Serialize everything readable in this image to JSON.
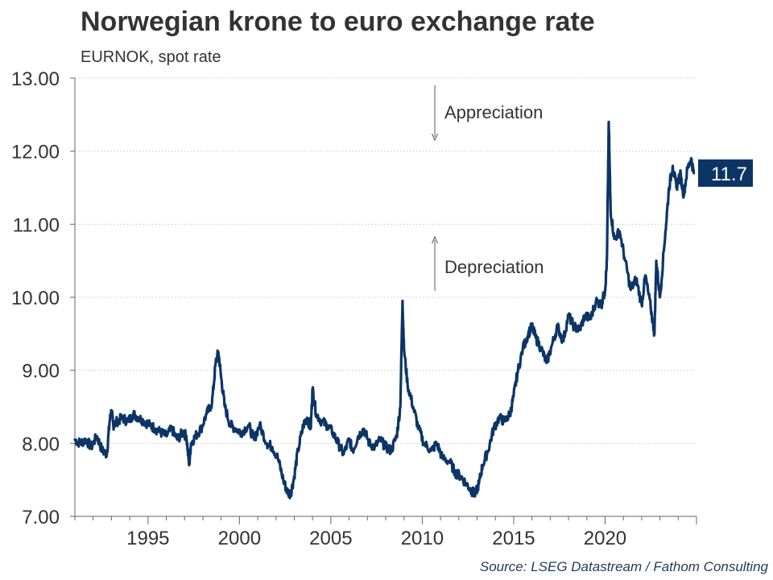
{
  "chart_data": {
    "type": "line",
    "title": "Norwegian krone to euro exchange rate",
    "subtitle": "EURNOK, spot rate",
    "source": "Source: LSEG Datastream / Fathom Consulting",
    "ylim": [
      7.0,
      13.0
    ],
    "yticks": [
      "7.00",
      "8.00",
      "9.00",
      "10.00",
      "11.00",
      "12.00",
      "13.00"
    ],
    "xlim": [
      1991.0,
      2025.0
    ],
    "xticks": [
      "1995",
      "2000",
      "2005",
      "2010",
      "2015",
      "2020"
    ],
    "grid": true,
    "line_color": "#0c3566",
    "last_value_label": "11.7",
    "annotations": [
      {
        "text": "Appreciation",
        "arrow": "down"
      },
      {
        "text": "Depreciation",
        "arrow": "up"
      }
    ],
    "series": [
      {
        "x": [
          1991.0,
          1991.3,
          1991.6,
          1991.9,
          1992.2,
          1992.5,
          1992.75,
          1992.9,
          1993.0,
          1993.1,
          1993.3,
          1993.6,
          1993.9,
          1994.2,
          1994.5,
          1994.8,
          1995.1,
          1995.4,
          1995.7,
          1996.0,
          1996.3,
          1996.6,
          1996.9,
          1997.1,
          1997.25,
          1997.35,
          1997.6,
          1997.9,
          1998.2,
          1998.5,
          1998.7,
          1998.85,
          1999.0,
          1999.2,
          1999.5,
          1999.8,
          2000.1,
          2000.5,
          2000.8,
          2001.1,
          2001.5,
          2001.8,
          2002.1,
          2002.4,
          2002.6,
          2002.8,
          2003.0,
          2003.2,
          2003.5,
          2003.7,
          2003.9,
          2004.0,
          2004.2,
          2004.5,
          2004.8,
          2005.1,
          2005.4,
          2005.7,
          2006.0,
          2006.2,
          2006.5,
          2006.8,
          2007.1,
          2007.4,
          2007.7,
          2008.0,
          2008.3,
          2008.6,
          2008.8,
          2008.92,
          2009.0,
          2009.2,
          2009.5,
          2009.8,
          2010.1,
          2010.5,
          2010.8,
          2011.1,
          2011.5,
          2011.8,
          2012.1,
          2012.4,
          2012.7,
          2012.9,
          2013.1,
          2013.3,
          2013.6,
          2013.9,
          2014.2,
          2014.5,
          2014.8,
          2015.0,
          2015.2,
          2015.5,
          2015.8,
          2016.0,
          2016.2,
          2016.5,
          2016.8,
          2017.1,
          2017.4,
          2017.7,
          2018.0,
          2018.3,
          2018.6,
          2018.9,
          2019.2,
          2019.5,
          2019.8,
          2020.0,
          2020.1,
          2020.2,
          2020.3,
          2020.5,
          2020.8,
          2021.1,
          2021.4,
          2021.7,
          2022.0,
          2022.2,
          2022.5,
          2022.7,
          2022.8,
          2023.0,
          2023.3,
          2023.5,
          2023.7,
          2023.9,
          2024.1,
          2024.3,
          2024.5,
          2024.7,
          2024.85
        ],
        "y": [
          8.05,
          8.0,
          8.05,
          7.95,
          8.1,
          7.9,
          7.85,
          8.3,
          8.45,
          8.25,
          8.3,
          8.35,
          8.3,
          8.4,
          8.35,
          8.3,
          8.25,
          8.2,
          8.15,
          8.1,
          8.2,
          8.05,
          8.15,
          8.1,
          7.7,
          8.0,
          8.1,
          8.2,
          8.4,
          8.55,
          9.1,
          9.25,
          8.9,
          8.5,
          8.25,
          8.2,
          8.15,
          8.25,
          8.05,
          8.25,
          8.0,
          7.95,
          7.8,
          7.5,
          7.35,
          7.3,
          7.55,
          7.9,
          8.25,
          8.35,
          8.2,
          8.75,
          8.4,
          8.3,
          8.25,
          8.15,
          8.0,
          7.85,
          8.05,
          7.9,
          8.1,
          8.2,
          8.0,
          7.95,
          8.05,
          7.95,
          7.9,
          8.1,
          8.5,
          9.95,
          9.3,
          8.8,
          8.5,
          8.2,
          8.0,
          7.9,
          8.0,
          7.8,
          7.75,
          7.6,
          7.55,
          7.45,
          7.35,
          7.3,
          7.45,
          7.7,
          7.9,
          8.2,
          8.35,
          8.3,
          8.4,
          8.65,
          8.95,
          9.3,
          9.5,
          9.6,
          9.45,
          9.3,
          9.1,
          9.35,
          9.6,
          9.4,
          9.75,
          9.6,
          9.55,
          9.75,
          9.7,
          9.95,
          9.9,
          10.1,
          10.5,
          12.4,
          11.2,
          10.8,
          10.9,
          10.5,
          10.1,
          10.25,
          9.9,
          10.3,
          9.85,
          9.5,
          10.5,
          10.0,
          10.9,
          11.5,
          11.8,
          11.5,
          11.7,
          11.4,
          11.75,
          11.9,
          11.7
        ]
      }
    ]
  }
}
